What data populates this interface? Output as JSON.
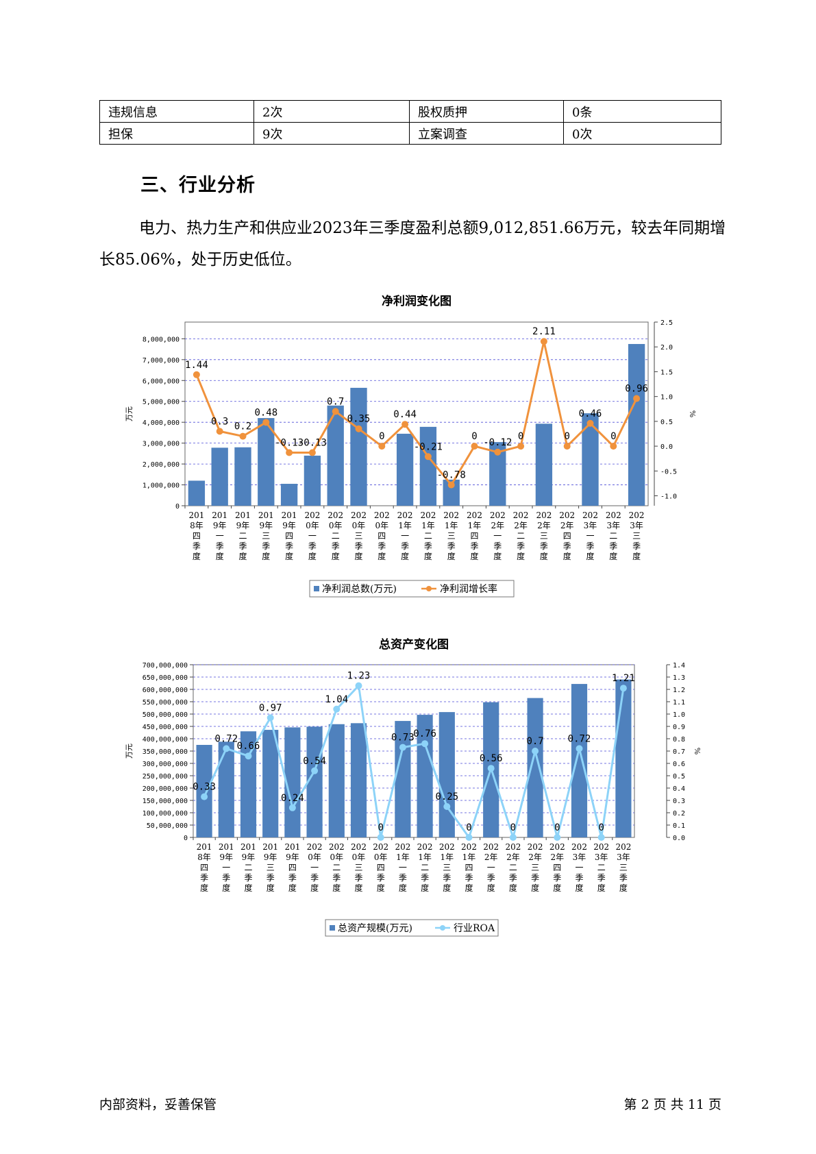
{
  "table": {
    "rows": [
      [
        "违规信息",
        "2次",
        "股权质押",
        "0条"
      ],
      [
        "担保",
        "9次",
        "立案调查",
        "0次"
      ]
    ]
  },
  "section_title": "三、行业分析",
  "paragraph": "电力、热力生产和供应业2023年三季度盈利总额9,012,851.66万元，较去年同期增长85.06%，处于历史低位。",
  "colors": {
    "bar": "#4f81bd",
    "line1": "#f0923c",
    "line2": "#8dd3f8",
    "grid": "#4a4ad8"
  },
  "chart_data": [
    {
      "type": "bar",
      "title": "净利润变化图",
      "categories": [
        "2018年四季度",
        "2019年一季度",
        "2019年二季度",
        "2019年三季度",
        "2019年四季度",
        "2020年一季度",
        "2020年二季度",
        "2020年三季度",
        "2020年四季度",
        "2021年一季度",
        "2021年二季度",
        "2021年三季度",
        "2021年四季度",
        "2022年一季度",
        "2022年二季度",
        "2022年三季度",
        "2022年四季度",
        "2023年一季度",
        "2023年二季度",
        "2023年三季度"
      ],
      "ylabel": "万元",
      "y2label": "%",
      "ylim": [
        0,
        8800000
      ],
      "y2lim": [
        -1.2,
        2.5
      ],
      "yticks": [
        "0",
        "1,000,000",
        "2,000,000",
        "3,000,000",
        "4,000,000",
        "5,000,000",
        "6,000,000",
        "7,000,000",
        "8,000,000"
      ],
      "y2ticks": [
        "-1.0",
        "-0.5",
        "0.0",
        "0.5",
        "1.0",
        "1.5",
        "2.0",
        "2.5"
      ],
      "series": [
        {
          "name": "净利润总数(万元)",
          "type": "bar",
          "values": [
            1200000,
            2780000,
            2800000,
            4200000,
            1050000,
            2400000,
            4800000,
            5650000,
            0,
            3450000,
            3780000,
            1250000,
            0,
            3050000,
            0,
            3930000,
            0,
            4430000,
            0,
            7750000
          ]
        },
        {
          "name": "净利润增长率",
          "type": "line",
          "axis": "y2",
          "values": [
            1.44,
            0.3,
            0.2,
            0.48,
            -0.13,
            -0.13,
            0.7,
            0.35,
            0,
            0.44,
            -0.21,
            -0.78,
            0,
            -0.12,
            0,
            2.11,
            0,
            0.46,
            0,
            0.96
          ]
        }
      ],
      "legend": "bottom"
    },
    {
      "type": "bar",
      "title": "总资产变化图",
      "categories": [
        "2018年四季度",
        "2019年一季度",
        "2019年二季度",
        "2019年三季度",
        "2019年四季度",
        "2020年一季度",
        "2020年二季度",
        "2020年三季度",
        "2020年四季度",
        "2021年一季度",
        "2021年二季度",
        "2021年三季度",
        "2021年四季度",
        "2022年一季度",
        "2022年二季度",
        "2022年三季度",
        "2022年四季度",
        "2023年一季度",
        "2023年二季度",
        "2023年三季度"
      ],
      "ylabel": "万元",
      "y2label": "%",
      "ylim": [
        0,
        700000000
      ],
      "y2lim": [
        0,
        1.4
      ],
      "yticks": [
        "0",
        "50,000,000",
        "100,000,000",
        "150,000,000",
        "200,000,000",
        "250,000,000",
        "300,000,000",
        "350,000,000",
        "400,000,000",
        "450,000,000",
        "500,000,000",
        "550,000,000",
        "600,000,000",
        "650,000,000",
        "700,000,000"
      ],
      "y2ticks": [
        "0.0",
        "0.1",
        "0.2",
        "0.3",
        "0.4",
        "0.5",
        "0.6",
        "0.7",
        "0.8",
        "0.9",
        "1.0",
        "1.1",
        "1.2",
        "1.3",
        "1.4"
      ],
      "series": [
        {
          "name": "总资产规模(万元)",
          "type": "bar",
          "values": [
            375000000,
            388000000,
            430000000,
            436000000,
            446000000,
            449000000,
            459000000,
            463000000,
            0,
            472000000,
            497000000,
            508000000,
            0,
            548000000,
            0,
            565000000,
            0,
            622000000,
            0,
            640000000
          ]
        },
        {
          "name": "行业ROA",
          "type": "line",
          "axis": "y2",
          "values": [
            0.33,
            0.72,
            0.66,
            0.97,
            0.24,
            0.54,
            1.04,
            1.23,
            0,
            0.73,
            0.76,
            0.25,
            0,
            0.56,
            0,
            0.7,
            0,
            0.72,
            0,
            1.21
          ]
        }
      ],
      "legend": "bottom"
    }
  ],
  "footer": {
    "left": "内部资料，妥善保管",
    "right": "第 2 页  共 11 页"
  }
}
